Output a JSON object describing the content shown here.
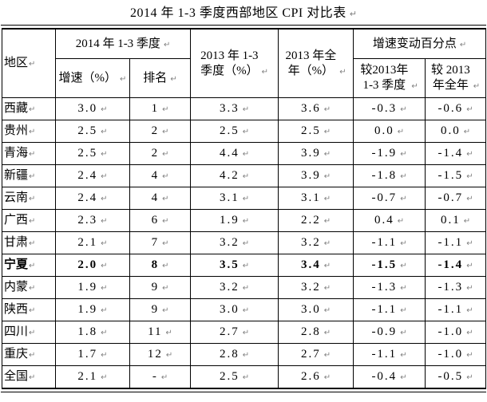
{
  "title": "2014 年 1-3 季度西部地区 CPI 对比表",
  "marks": {
    "eol": "↵"
  },
  "table": {
    "header": {
      "region": "地区",
      "group_2014": "2014 年 1-3 季度",
      "growth": "增速（%）",
      "rank": "排名",
      "q2013": "2013 年 1-3\n季度（%）",
      "y2013": "2013 年全\n年（%）",
      "group_change": "增速变动百分点",
      "vs_q2013": "较2013年\n1-3 季度",
      "vs_y2013": "较 2013\n年全年"
    },
    "rows": [
      {
        "cells": [
          "西藏",
          "3.0",
          "1",
          "3.3",
          "3.6",
          "-0.3",
          "-0.6"
        ],
        "bold": false
      },
      {
        "cells": [
          "贵州",
          "2.5",
          "2",
          "2.5",
          "2.5",
          "0.0",
          "0.0"
        ],
        "bold": false
      },
      {
        "cells": [
          "青海",
          "2.5",
          "2",
          "4.4",
          "3.9",
          "-1.9",
          "-1.4"
        ],
        "bold": false
      },
      {
        "cells": [
          "新疆",
          "2.4",
          "4",
          "4.2",
          "3.9",
          "-1.8",
          "-1.5"
        ],
        "bold": false
      },
      {
        "cells": [
          "云南",
          "2.4",
          "4",
          "3.1",
          "3.1",
          "-0.7",
          "-0.7"
        ],
        "bold": false
      },
      {
        "cells": [
          "广西",
          "2.3",
          "6",
          "1.9",
          "2.2",
          "0.4",
          "0.1"
        ],
        "bold": false
      },
      {
        "cells": [
          "甘肃",
          "2.1",
          "7",
          "3.2",
          "3.2",
          "-1.1",
          "-1.1"
        ],
        "bold": false
      },
      {
        "cells": [
          "宁夏",
          "2.0",
          "8",
          "3.5",
          "3.4",
          "-1.5",
          "-1.4"
        ],
        "bold": true
      },
      {
        "cells": [
          "内蒙",
          "1.9",
          "9",
          "3.2",
          "3.2",
          "-1.3",
          "-1.3"
        ],
        "bold": false
      },
      {
        "cells": [
          "陕西",
          "1.9",
          "9",
          "3.0",
          "3.0",
          "-1.1",
          "-1.1"
        ],
        "bold": false
      },
      {
        "cells": [
          "四川",
          "1.8",
          "11",
          "2.7",
          "2.8",
          "-0.9",
          "-1.0"
        ],
        "bold": false
      },
      {
        "cells": [
          "重庆",
          "1.7",
          "12",
          "2.8",
          "2.7",
          "-1.1",
          "-1.0"
        ],
        "bold": false
      },
      {
        "cells": [
          "全国",
          "2.1",
          "-",
          "2.5",
          "2.6",
          "-0.4",
          "-0.5"
        ],
        "bold": false
      }
    ]
  }
}
